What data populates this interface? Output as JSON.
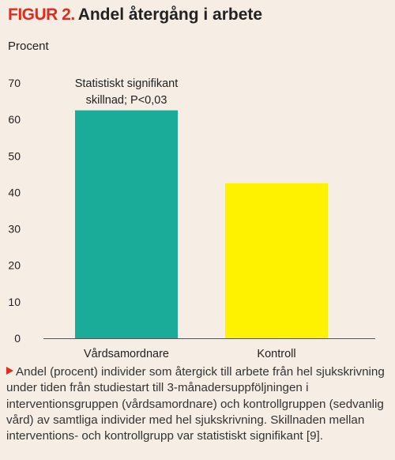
{
  "figure": {
    "label": "FIGUR 2.",
    "title": "Andel återgång i arbete"
  },
  "colors": {
    "background": "#f6ede4",
    "accent": "#e22b1f",
    "bar_1": "#1aab99",
    "bar_2": "#fff200"
  },
  "chart_data": {
    "type": "bar",
    "title": "Andel återgång i arbete",
    "ylabel": "Procent",
    "xlabel": "",
    "categories": [
      "Vårdsamordnare",
      "Kontroll"
    ],
    "values": [
      62.5,
      42.5
    ],
    "ylim": [
      0,
      70
    ],
    "yticks": [
      0,
      10,
      20,
      30,
      40,
      50,
      60,
      70
    ],
    "grid": false,
    "annotation": {
      "category": "Vårdsamordnare",
      "lines": [
        "Statistiskt signifikant",
        "skillnad; P<0,03"
      ]
    }
  },
  "caption": {
    "text": "Andel (procent) individer som återgick till arbete från hel sjukskrivning under tiden från studiestart till 3-månadersuppföljningen i interventionsgruppen (vårdsamordnare) och kontrollgruppen (sedvanlig vård) av samtliga individer med hel sjukskrivning. Skillnaden mellan interventions- och kontrollgrupp var statistiskt signifikant [9]."
  }
}
